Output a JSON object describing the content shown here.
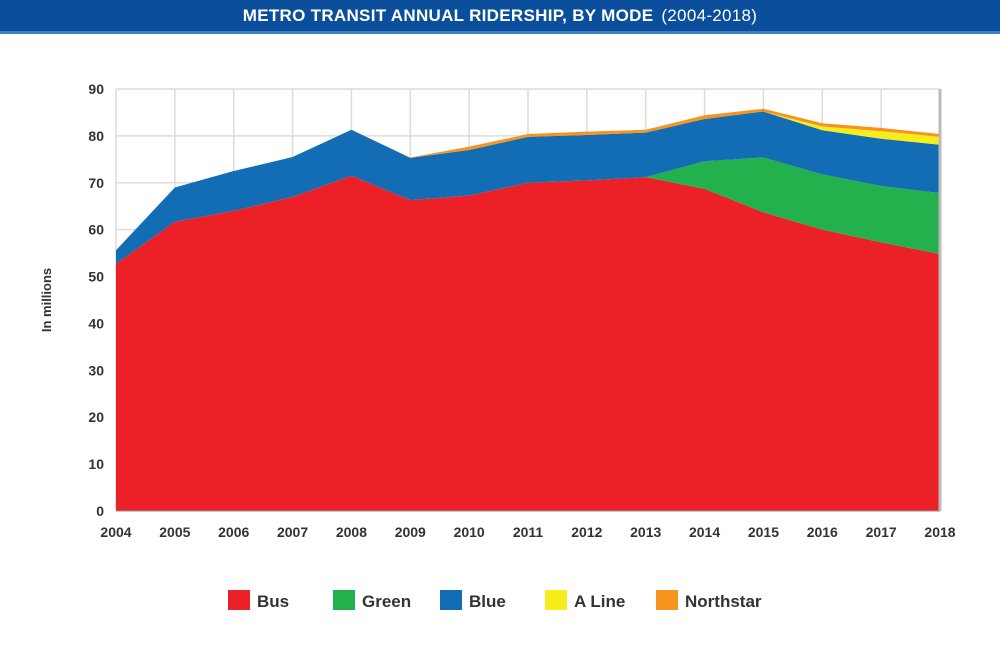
{
  "chart_data": {
    "type": "area",
    "stacked": true,
    "title": "METRO TRANSIT ANNUAL RIDERSHIP, BY MODE",
    "subtitle": "(2004-2018)",
    "xlabel": "",
    "ylabel": "In millions",
    "ylim": [
      0,
      90
    ],
    "yticks": [
      0,
      10,
      20,
      30,
      40,
      50,
      60,
      70,
      80,
      90
    ],
    "grid": true,
    "legend_position": "bottom",
    "x": [
      2004,
      2005,
      2006,
      2007,
      2008,
      2009,
      2010,
      2011,
      2012,
      2013,
      2014,
      2015,
      2016,
      2017,
      2018
    ],
    "series": [
      {
        "name": "Bus",
        "color": "#ec2027",
        "values": [
          52.7,
          61.7,
          64.0,
          67.0,
          71.5,
          66.3,
          67.3,
          70.0,
          70.5,
          71.2,
          68.7,
          63.7,
          60.0,
          57.3,
          54.8
        ]
      },
      {
        "name": "Green",
        "color": "#22b14c",
        "values": [
          0,
          0,
          0,
          0,
          0,
          0,
          0,
          0,
          0,
          0,
          5.9,
          11.7,
          11.8,
          12.0,
          13.0
        ]
      },
      {
        "name": "Blue",
        "color": "#126db5",
        "values": [
          2.9,
          7.3,
          8.5,
          8.5,
          9.8,
          9.0,
          9.7,
          9.8,
          9.7,
          9.5,
          9.0,
          9.8,
          9.4,
          10.1,
          10.3
        ]
      },
      {
        "name": "A Line",
        "color": "#f7ec1c",
        "values": [
          0,
          0,
          0,
          0,
          0,
          0,
          0,
          0,
          0,
          0,
          0,
          0,
          0.8,
          1.6,
          1.7
        ]
      },
      {
        "name": "Northstar",
        "color": "#f7941d",
        "values": [
          0,
          0,
          0,
          0,
          0,
          0.1,
          0.7,
          0.6,
          0.7,
          0.6,
          0.8,
          0.6,
          0.7,
          0.7,
          0.6
        ]
      }
    ]
  }
}
